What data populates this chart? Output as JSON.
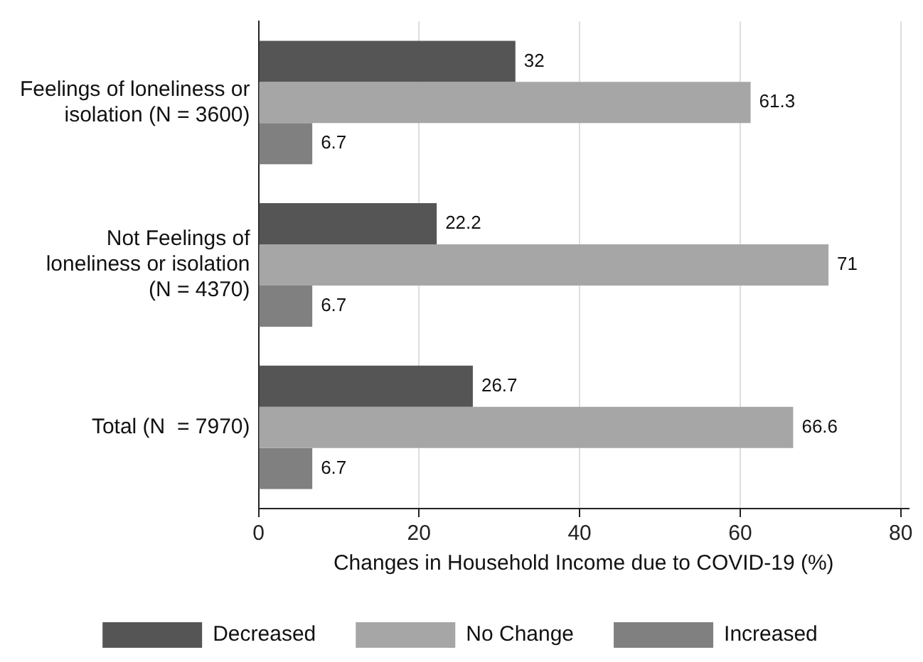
{
  "chart_data": {
    "type": "bar",
    "orientation": "horizontal",
    "xlabel": "Changes in Household Income due to COVID-19 (%)",
    "categories": [
      "Feelings of loneliness or\nisolation (N = 3600)",
      "Not Feelings of\nloneliness or isolation\n(N = 4370)",
      "Total (N  = 7970)"
    ],
    "series": [
      {
        "name": "Decreased",
        "color": "#555555",
        "values": [
          32,
          22.2,
          26.7
        ]
      },
      {
        "name": "No Change",
        "color": "#a6a6a6",
        "values": [
          61.3,
          71,
          66.6
        ]
      },
      {
        "name": "Increased",
        "color": "#808080",
        "values": [
          6.7,
          6.7,
          6.7
        ]
      }
    ],
    "xlim": [
      0,
      81
    ],
    "xticks": [
      0,
      20,
      40,
      60,
      80
    ],
    "grid": "x",
    "legend": "bottom",
    "data_labels": true
  }
}
